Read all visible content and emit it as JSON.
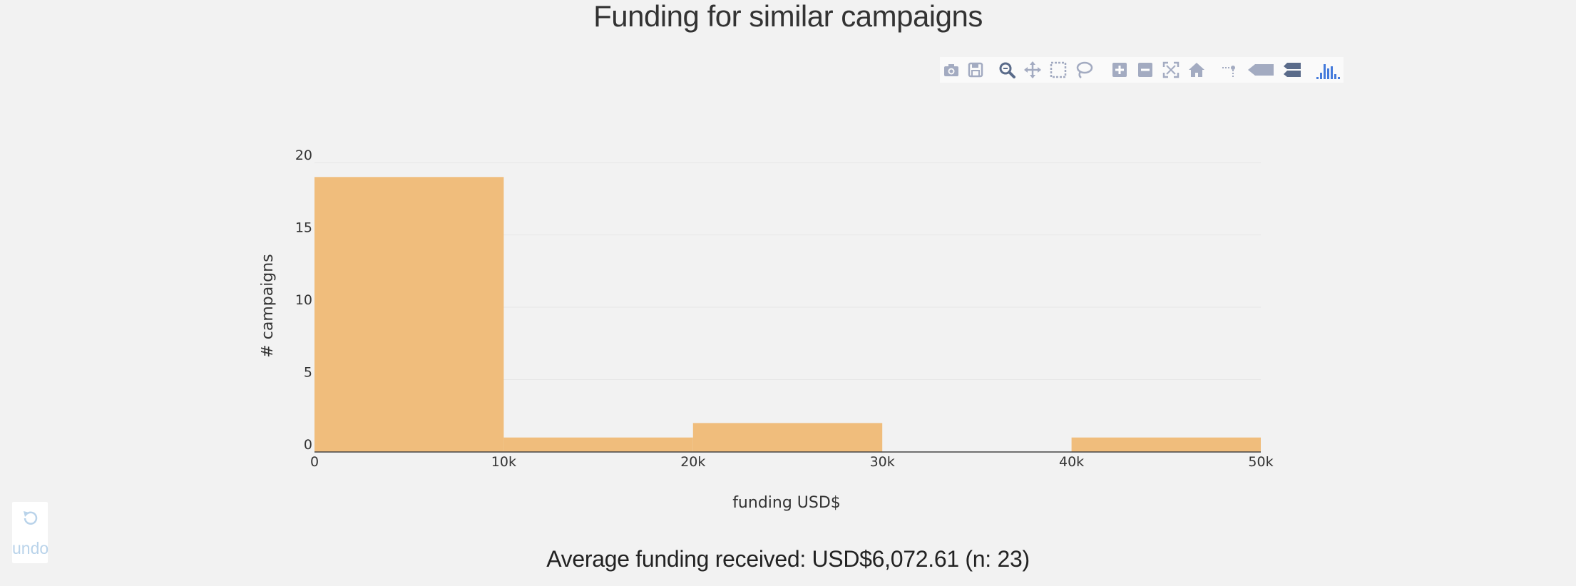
{
  "chart_title": "Funding for similar campaigns",
  "summary": "Average funding received: USD$6,072.61 (n: 23)",
  "undo": {
    "label": "undo"
  },
  "modebar": {
    "buttons": [
      "camera-icon",
      "save-icon",
      "zoom-icon",
      "pan-icon",
      "box-select-icon",
      "lasso-icon",
      "zoom-in-icon",
      "zoom-out-icon",
      "autoscale-icon",
      "reset-axes-icon",
      "spike-lines-icon",
      "hover-closest-icon",
      "hover-compare-icon",
      "plotly-logo-icon"
    ]
  },
  "colors": {
    "background": "#f2f2f2",
    "bar_fill": "#f0bd7c",
    "grid": "#e6e6e6",
    "axis_line": "#444444",
    "modebar_icon": "#a3abc1",
    "modebar_active": "#5a6b8a",
    "plotly_blue": "#447adb"
  },
  "chart_data": {
    "type": "bar",
    "subtype": "histogram",
    "title": "Funding for similar campaigns",
    "xlabel": "funding USD$",
    "ylabel": "# campaigns",
    "bins": [
      {
        "x0": 0,
        "x1": 10000,
        "count": 19
      },
      {
        "x0": 10000,
        "x1": 20000,
        "count": 1
      },
      {
        "x0": 20000,
        "x1": 30000,
        "count": 2
      },
      {
        "x0": 30000,
        "x1": 40000,
        "count": 0
      },
      {
        "x0": 40000,
        "x1": 50000,
        "count": 1
      }
    ],
    "xlim": [
      0,
      50000
    ],
    "ylim": [
      0,
      20
    ],
    "x_ticks": [
      {
        "value": 0,
        "label": "0"
      },
      {
        "value": 10000,
        "label": "10k"
      },
      {
        "value": 20000,
        "label": "20k"
      },
      {
        "value": 30000,
        "label": "30k"
      },
      {
        "value": 40000,
        "label": "40k"
      },
      {
        "value": 50000,
        "label": "50k"
      }
    ],
    "y_ticks": [
      {
        "value": 0,
        "label": "0"
      },
      {
        "value": 5,
        "label": "5"
      },
      {
        "value": 10,
        "label": "10"
      },
      {
        "value": 15,
        "label": "15"
      },
      {
        "value": 20,
        "label": "20"
      }
    ],
    "grid": true,
    "legend": "none"
  }
}
